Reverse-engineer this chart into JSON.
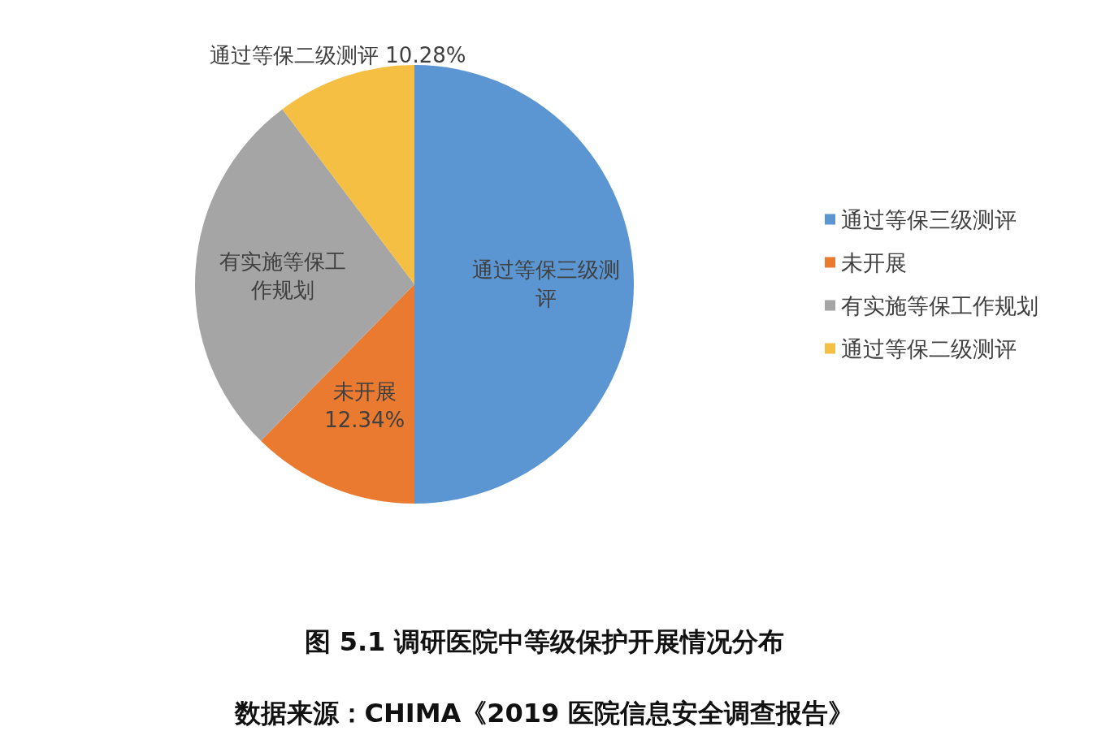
{
  "chart_data": {
    "type": "pie",
    "title": "图 5.1 调研医院中等级保护开展情况分布",
    "annotations": [
      "数据来源：CHIMA《2019 医院信息安全调查报告》"
    ],
    "categories": [
      "通过等保三级测评",
      "未开展",
      "有实施等保工作规划",
      "通过等保二级测评"
    ],
    "values": [
      50,
      12.34,
      27.38,
      10.28
    ],
    "colors": [
      "#5b96d2",
      "#ea7a30",
      "#a5a5a5",
      "#f4bf42"
    ],
    "value_labels": [
      null,
      "12.34%",
      null,
      "10.28%"
    ],
    "legend": "right"
  }
}
